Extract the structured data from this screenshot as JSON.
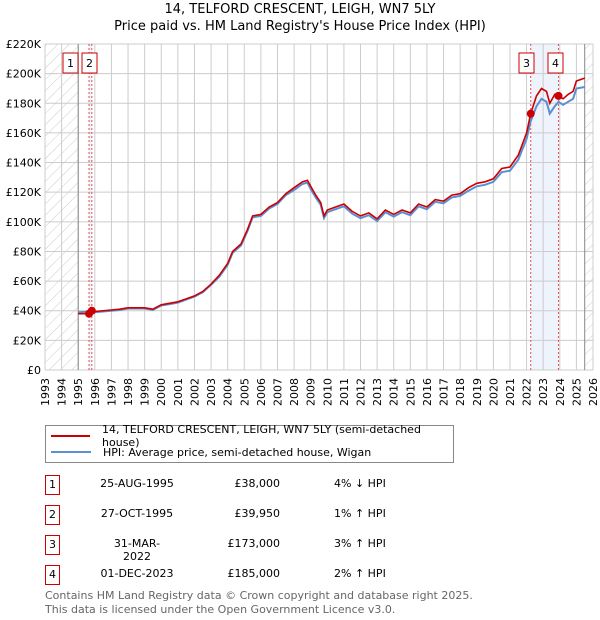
{
  "chart_data": {
    "type": "line",
    "title": "14, TELFORD CRESCENT, LEIGH, WN7 5LY",
    "subtitle": "Price paid vs. HM Land Registry's House Price Index (HPI)",
    "xlim": [
      1993,
      2026
    ],
    "ylim": [
      0,
      220000
    ],
    "x_ticks": [
      "1993",
      "1994",
      "1995",
      "1996",
      "1997",
      "1998",
      "1999",
      "2000",
      "2001",
      "2002",
      "2003",
      "2004",
      "2005",
      "2006",
      "2007",
      "2008",
      "2009",
      "2010",
      "2011",
      "2012",
      "2013",
      "2014",
      "2015",
      "2016",
      "2017",
      "2018",
      "2019",
      "2020",
      "2021",
      "2022",
      "2023",
      "2024",
      "2025",
      "2026"
    ],
    "y_ticks": [
      {
        "v": 0,
        "label": "£0"
      },
      {
        "v": 20000,
        "label": "£20K"
      },
      {
        "v": 40000,
        "label": "£40K"
      },
      {
        "v": 60000,
        "label": "£60K"
      },
      {
        "v": 80000,
        "label": "£80K"
      },
      {
        "v": 100000,
        "label": "£100K"
      },
      {
        "v": 120000,
        "label": "£120K"
      },
      {
        "v": 140000,
        "label": "£140K"
      },
      {
        "v": 160000,
        "label": "£160K"
      },
      {
        "v": 180000,
        "label": "£180K"
      },
      {
        "v": 200000,
        "label": "£200K"
      },
      {
        "v": 220000,
        "label": "£220K"
      }
    ],
    "grid": true,
    "hatched_ranges": [
      [
        1993,
        1995
      ],
      [
        2025.5,
        2026
      ]
    ],
    "colors": {
      "property": "#cc0000",
      "hpi": "#5b8fd4",
      "band": "#eef3fc",
      "grid": "#cccccc"
    },
    "series": [
      {
        "name": "14, TELFORD CRESCENT, LEIGH, WN7 5LY (semi-detached house)",
        "x": [
          1995.0,
          1995.65,
          1995.82,
          1996,
          1997,
          1997.5,
          1998,
          1999,
          1999.5,
          2000,
          2000.5,
          2001,
          2001.5,
          2002,
          2002.5,
          2003,
          2003.5,
          2004,
          2004.3,
          2004.8,
          2005.2,
          2005.5,
          2006,
          2006.5,
          2007,
          2007.5,
          2008,
          2008.5,
          2008.8,
          2009.0,
          2009.3,
          2009.6,
          2009.8,
          2010,
          2010.5,
          2011,
          2011.5,
          2012,
          2012.5,
          2013,
          2013.5,
          2014,
          2014.5,
          2015,
          2015.5,
          2016,
          2016.5,
          2017,
          2017.5,
          2018,
          2018.5,
          2019,
          2019.5,
          2020,
          2020.5,
          2021,
          2021.5,
          2022,
          2022.25,
          2022.6,
          2022.9,
          2023.2,
          2023.4,
          2023.7,
          2023.92,
          2024.2,
          2024.5,
          2024.8,
          2025.0,
          2025.5
        ],
        "values": [
          38000,
          38000,
          39950,
          39500,
          40500,
          41000,
          42000,
          42000,
          41000,
          44000,
          45000,
          46000,
          48000,
          50000,
          53000,
          58000,
          64000,
          72000,
          80000,
          85000,
          95000,
          104000,
          105000,
          110000,
          113000,
          119000,
          123000,
          127000,
          128000,
          124000,
          118000,
          113000,
          104000,
          108000,
          110000,
          112000,
          107000,
          104000,
          106000,
          102000,
          108000,
          105000,
          108000,
          106000,
          112000,
          110000,
          115000,
          114000,
          118000,
          119000,
          123000,
          126000,
          127000,
          129000,
          136000,
          137000,
          145000,
          160000,
          173000,
          185000,
          190000,
          188000,
          180000,
          186000,
          185000,
          183000,
          186000,
          188000,
          195000,
          197000
        ]
      },
      {
        "name": "HPI: Average price, semi-detached house, Wigan",
        "x": [
          1995.0,
          1995.65,
          1995.82,
          1996,
          1997,
          1997.5,
          1998,
          1999,
          1999.5,
          2000,
          2000.5,
          2001,
          2001.5,
          2002,
          2002.5,
          2003,
          2003.5,
          2004,
          2004.3,
          2004.8,
          2005.2,
          2005.5,
          2006,
          2006.5,
          2007,
          2007.5,
          2008,
          2008.5,
          2008.8,
          2009.0,
          2009.3,
          2009.6,
          2009.8,
          2010,
          2010.5,
          2011,
          2011.5,
          2012,
          2012.5,
          2013,
          2013.5,
          2014,
          2014.5,
          2015,
          2015.5,
          2016,
          2016.5,
          2017,
          2017.5,
          2018,
          2018.5,
          2019,
          2019.5,
          2020,
          2020.5,
          2021,
          2021.5,
          2022,
          2022.25,
          2022.6,
          2022.9,
          2023.2,
          2023.4,
          2023.7,
          2023.92,
          2024.2,
          2024.5,
          2024.8,
          2025.0,
          2025.5
        ],
        "values": [
          39000,
          39500,
          39500,
          39000,
          40000,
          40500,
          41500,
          41500,
          40500,
          43500,
          44500,
          45500,
          47500,
          49500,
          52500,
          57500,
          63000,
          71000,
          79000,
          84000,
          94000,
          103000,
          104000,
          109000,
          112000,
          118000,
          121500,
          125500,
          126500,
          122000,
          116500,
          111500,
          102500,
          106500,
          108500,
          110500,
          105500,
          102500,
          104500,
          100500,
          106500,
          103500,
          106500,
          104500,
          110500,
          108500,
          113500,
          112500,
          116500,
          117500,
          121000,
          124000,
          125000,
          127000,
          133500,
          134500,
          142000,
          156000,
          168000,
          178000,
          183000,
          181000,
          173000,
          178000,
          181000,
          179000,
          181000,
          183000,
          190000,
          191000
        ]
      }
    ],
    "sales": [
      {
        "id": "1",
        "x": 1995.65,
        "date": "25-AUG-1995",
        "price": "£38,000",
        "value": 38000,
        "hpi": "4% ↓ HPI"
      },
      {
        "id": "2",
        "x": 1995.82,
        "date": "27-OCT-1995",
        "price": "£39,950",
        "value": 39950,
        "hpi": "1% ↑ HPI"
      },
      {
        "id": "3",
        "x": 2022.25,
        "date": "31-MAR-2022",
        "price": "£173,000",
        "value": 173000,
        "hpi": "3% ↑ HPI"
      },
      {
        "id": "4",
        "x": 2023.92,
        "date": "01-DEC-2023",
        "price": "£185,000",
        "value": 185000,
        "hpi": "2% ↑ HPI"
      }
    ],
    "legend_placement": "below"
  },
  "footer": {
    "line1": "Contains HM Land Registry data © Crown copyright and database right 2025.",
    "line2": "This data is licensed under the Open Government Licence v3.0."
  }
}
